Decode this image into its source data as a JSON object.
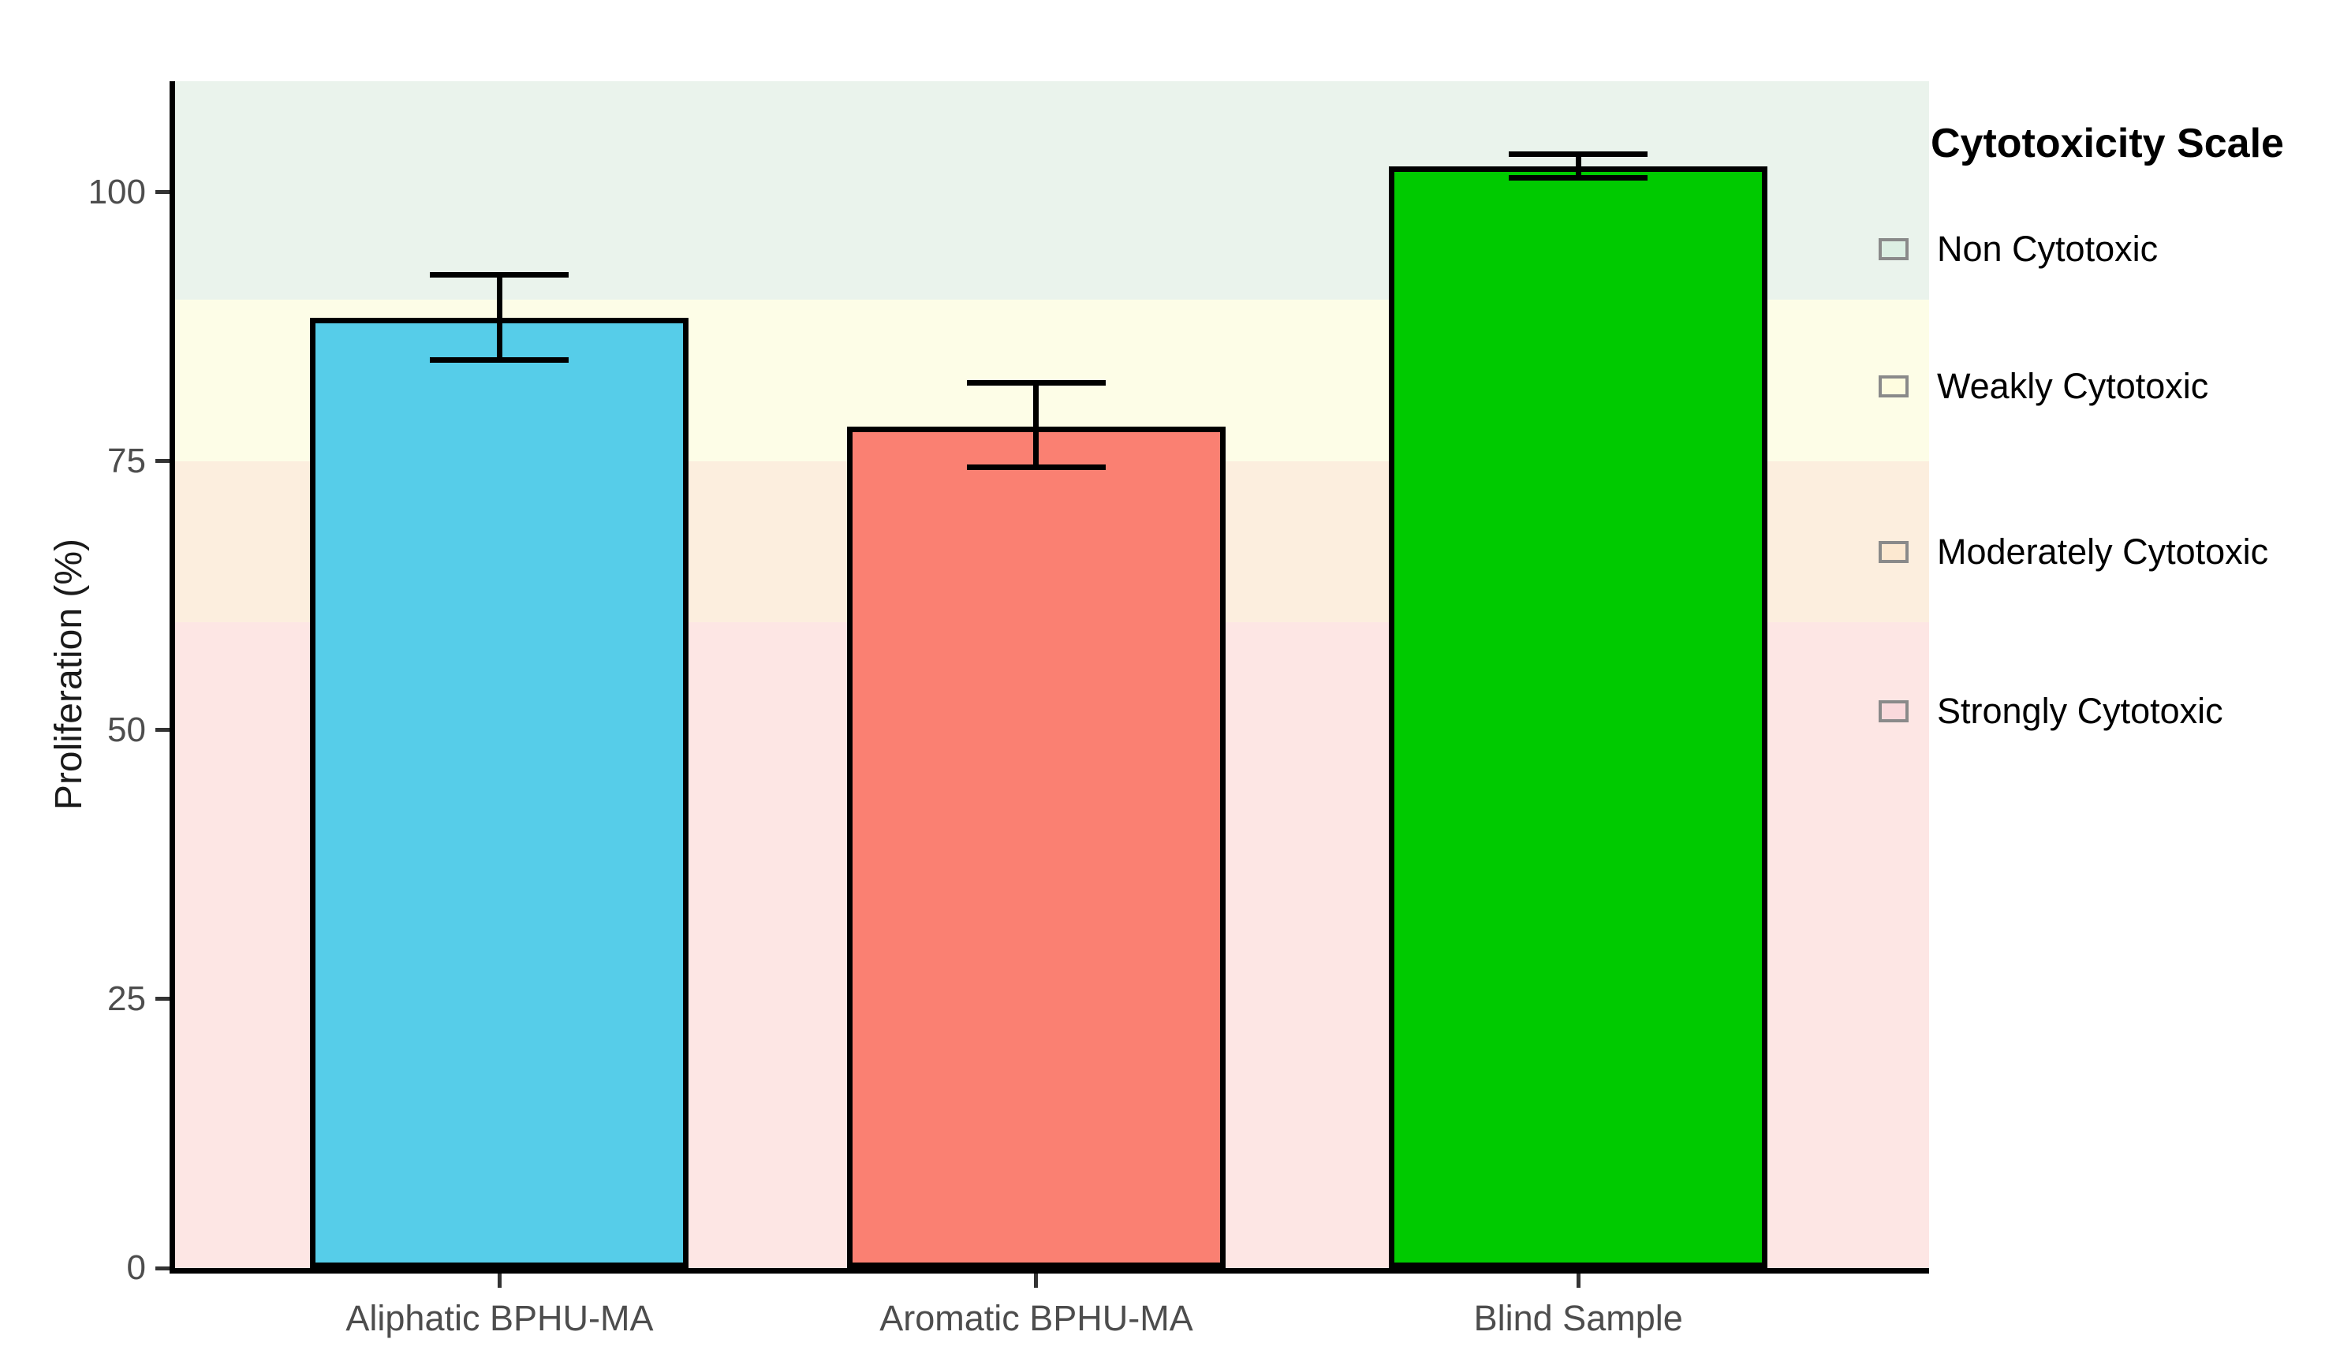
{
  "chart_data": {
    "type": "bar",
    "title": "",
    "xlabel": "",
    "ylabel": "Proliferation (%)",
    "ylim": [
      0,
      110.3
    ],
    "yticks": [
      0,
      25,
      50,
      75,
      100
    ],
    "categories": [
      "Aliphatic BPHU-MA",
      "Aromatic BPHU-MA",
      "Blind Sample"
    ],
    "values": [
      88.3,
      78.2,
      102.4
    ],
    "error_low": [
      84.4,
      74.4,
      101.3
    ],
    "error_high": [
      92.3,
      82.3,
      103.5
    ],
    "bar_colors": [
      "#56CDE9",
      "#FA8072",
      "#00CA00"
    ],
    "bands": [
      {
        "label": "Non Cytotoxic",
        "from": 90,
        "to": 110.3,
        "color": "#EAF3EC",
        "key_color": "#DCEFE3"
      },
      {
        "label": "Weakly Cytotoxic",
        "from": 75,
        "to": 90,
        "color": "#FDFDE7",
        "key_color": "#FEFCDF"
      },
      {
        "label": "Moderately Cytotoxic",
        "from": 60,
        "to": 75,
        "color": "#FCEEDE",
        "key_color": "#FCE8D0"
      },
      {
        "label": "Strongly Cytotoxic",
        "from": 0,
        "to": 60,
        "color": "#FDE6E4",
        "key_color": "#FAD9DC"
      }
    ],
    "legend": {
      "title": "Cytotoxicity Scale",
      "entries": [
        "Non Cytotoxic",
        "Weakly Cytotoxic",
        "Moderately Cytotoxic",
        "Strongly Cytotoxic"
      ],
      "position": "right"
    },
    "grid": false,
    "axis_color": "#000000"
  }
}
